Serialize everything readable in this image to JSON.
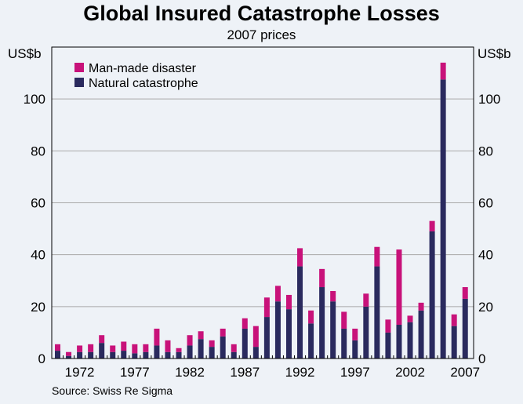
{
  "chart_data": {
    "type": "bar",
    "stacked": true,
    "title": "Global Insured Catastrophe Losses",
    "subtitle": "2007 prices",
    "ylabel_left": "US$b",
    "ylabel_right": "US$b",
    "ylim": [
      0,
      120
    ],
    "yticks": [
      0,
      20,
      40,
      60,
      80,
      100
    ],
    "xtick_labels": [
      "1972",
      "1977",
      "1982",
      "1987",
      "1992",
      "1997",
      "2002",
      "2007"
    ],
    "source": "Source: Swiss Re Sigma",
    "categories": [
      1970,
      1971,
      1972,
      1973,
      1974,
      1975,
      1976,
      1977,
      1978,
      1979,
      1980,
      1981,
      1982,
      1983,
      1984,
      1985,
      1986,
      1987,
      1988,
      1989,
      1990,
      1991,
      1992,
      1993,
      1994,
      1995,
      1996,
      1997,
      1998,
      1999,
      2000,
      2001,
      2002,
      2003,
      2004,
      2005,
      2006,
      2007
    ],
    "series": [
      {
        "name": "Natural catastrophe",
        "color": "#2a2a5e",
        "values": [
          3.0,
          1.0,
          2.5,
          2.5,
          6.0,
          2.5,
          3.0,
          2.0,
          2.5,
          5.0,
          2.5,
          2.5,
          5.0,
          7.5,
          4.5,
          8.5,
          2.5,
          11.5,
          4.5,
          16.0,
          22.0,
          19.0,
          35.5,
          13.5,
          27.5,
          22.0,
          11.5,
          7.0,
          20.0,
          35.5,
          10.0,
          13.0,
          14.0,
          18.5,
          49.0,
          107.5,
          12.5,
          23.0
        ]
      },
      {
        "name": "Man-made disaster",
        "color": "#c8127a",
        "values": [
          2.5,
          1.5,
          2.5,
          3.0,
          3.0,
          2.5,
          3.5,
          3.5,
          3.0,
          6.5,
          4.5,
          1.5,
          4.0,
          3.0,
          2.5,
          3.0,
          3.0,
          4.0,
          8.0,
          7.5,
          6.0,
          5.5,
          7.0,
          5.0,
          7.0,
          4.0,
          6.5,
          4.5,
          5.0,
          7.5,
          5.0,
          29.0,
          2.5,
          3.0,
          4.0,
          6.5,
          4.5,
          4.5
        ]
      }
    ],
    "legend": [
      "Man-made disaster",
      "Natural catastrophe"
    ]
  }
}
